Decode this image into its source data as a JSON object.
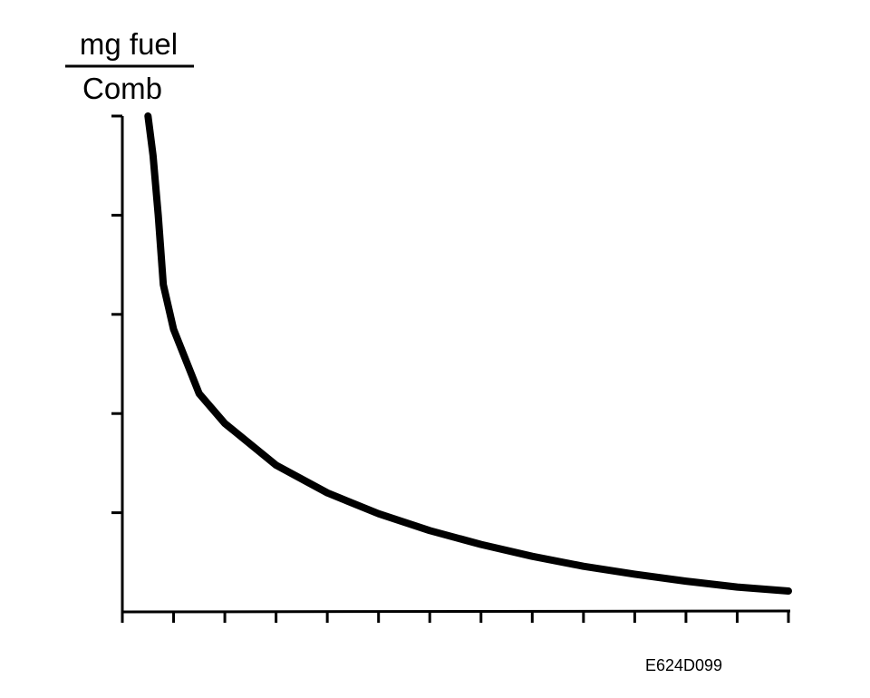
{
  "chart_data": {
    "type": "line",
    "title": "",
    "xlabel": "",
    "ylabel": {
      "numerator": "mg fuel",
      "denominator": "Comb"
    },
    "xlim": [
      0,
      13
    ],
    "ylim": [
      0,
      5
    ],
    "x_tick_count": 14,
    "y_tick_count": 5,
    "grid": false,
    "legend": "none",
    "series": [
      {
        "color": "#000000",
        "points": [
          {
            "x": 0.5,
            "y": 5.0
          },
          {
            "x": 0.6,
            "y": 4.6
          },
          {
            "x": 0.7,
            "y": 4.0
          },
          {
            "x": 0.8,
            "y": 3.3
          },
          {
            "x": 1.0,
            "y": 2.85
          },
          {
            "x": 1.5,
            "y": 2.2
          },
          {
            "x": 2.0,
            "y": 1.9
          },
          {
            "x": 3.0,
            "y": 1.48
          },
          {
            "x": 4.0,
            "y": 1.2
          },
          {
            "x": 5.0,
            "y": 0.99
          },
          {
            "x": 6.0,
            "y": 0.82
          },
          {
            "x": 7.0,
            "y": 0.68
          },
          {
            "x": 8.0,
            "y": 0.56
          },
          {
            "x": 9.0,
            "y": 0.46
          },
          {
            "x": 10.0,
            "y": 0.38
          },
          {
            "x": 11.0,
            "y": 0.31
          },
          {
            "x": 12.0,
            "y": 0.25
          },
          {
            "x": 13.0,
            "y": 0.21
          }
        ]
      }
    ]
  },
  "figure_id": "E624D099"
}
